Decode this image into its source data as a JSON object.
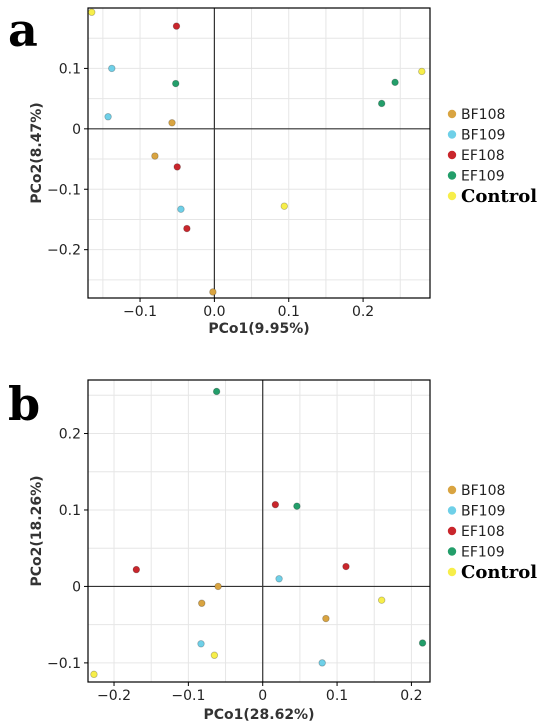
{
  "colors": {
    "BF108": "#D9A441",
    "BF109": "#6FD0E8",
    "EF108": "#C9262C",
    "EF109": "#239E6A",
    "Control": "#F7EE4A",
    "grid": "#e6e6e6",
    "zero_line": "#333333",
    "frame": "#000000"
  },
  "legend_bold_entries": [
    "Control"
  ],
  "chart_data": [
    {
      "panel": "a",
      "type": "scatter",
      "title": "",
      "xlabel": "PCo1(9.95%)",
      "ylabel": "PCo2(8.47%)",
      "xlim": [
        -0.17,
        0.29
      ],
      "ylim": [
        -0.28,
        0.2
      ],
      "xticks": [
        -0.1,
        0.0,
        0.1,
        0.2
      ],
      "xtick_labels": [
        "−0.1",
        "0.0",
        "0.1",
        "0.2"
      ],
      "yticks": [
        -0.2,
        -0.1,
        0.0,
        0.1
      ],
      "ytick_labels": [
        "−0.2",
        "−0.1",
        "0",
        "0.1"
      ],
      "grid": true,
      "legend_position": "right",
      "series": [
        {
          "name": "BF108",
          "points": [
            [
              -0.057,
              0.01
            ],
            [
              -0.08,
              -0.045
            ],
            [
              -0.002,
              -0.27
            ]
          ]
        },
        {
          "name": "BF109",
          "points": [
            [
              -0.138,
              0.1
            ],
            [
              -0.143,
              0.02
            ],
            [
              -0.045,
              -0.133
            ]
          ]
        },
        {
          "name": "EF108",
          "points": [
            [
              -0.051,
              0.17
            ],
            [
              -0.05,
              -0.063
            ],
            [
              -0.037,
              -0.165
            ]
          ]
        },
        {
          "name": "EF109",
          "points": [
            [
              -0.052,
              0.075
            ],
            [
              0.243,
              0.077
            ],
            [
              0.225,
              0.042
            ]
          ]
        },
        {
          "name": "Control",
          "points": [
            [
              -0.165,
              0.193
            ],
            [
              0.279,
              0.095
            ],
            [
              0.094,
              -0.128
            ]
          ]
        }
      ]
    },
    {
      "panel": "b",
      "type": "scatter",
      "title": "",
      "xlabel": "PCo1(28.62%)",
      "ylabel": "PCo2(18.26%)",
      "xlim": [
        -0.235,
        0.225
      ],
      "ylim": [
        -0.125,
        0.27
      ],
      "xticks": [
        -0.2,
        -0.1,
        0.0,
        0.1,
        0.2
      ],
      "xtick_labels": [
        "−0.2",
        "−0.1",
        "0",
        "0.1",
        "0.2"
      ],
      "yticks": [
        -0.1,
        0.0,
        0.1,
        0.2
      ],
      "ytick_labels": [
        "−0.1",
        "0",
        "0.1",
        "0.2"
      ],
      "grid": true,
      "legend_position": "right",
      "series": [
        {
          "name": "BF108",
          "points": [
            [
              -0.06,
              0.0
            ],
            [
              -0.082,
              -0.022
            ],
            [
              0.085,
              -0.042
            ]
          ]
        },
        {
          "name": "BF109",
          "points": [
            [
              0.022,
              0.01
            ],
            [
              -0.083,
              -0.075
            ],
            [
              0.08,
              -0.1
            ]
          ]
        },
        {
          "name": "EF108",
          "points": [
            [
              -0.17,
              0.022
            ],
            [
              0.017,
              0.107
            ],
            [
              0.112,
              0.026
            ]
          ]
        },
        {
          "name": "EF109",
          "points": [
            [
              -0.062,
              0.255
            ],
            [
              0.046,
              0.105
            ],
            [
              0.215,
              -0.074
            ]
          ]
        },
        {
          "name": "Control",
          "points": [
            [
              -0.227,
              -0.115
            ],
            [
              -0.065,
              -0.09
            ],
            [
              0.16,
              -0.018
            ]
          ]
        }
      ]
    }
  ]
}
